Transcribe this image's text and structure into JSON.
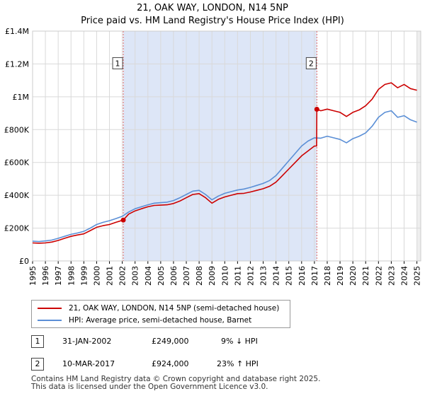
{
  "page_title_line1": "21, OAK WAY, LONDON, N14 5NP",
  "page_title_line2": "Price paid vs. HM Land Registry's House Price Index (HPI)",
  "colors": {
    "hpi": "#5b8fd6",
    "price": "#cc0000",
    "shade": "#dde6f7",
    "grid": "#d9d9d9",
    "marker_line": "#dd6666"
  },
  "chart_data": {
    "type": "line",
    "title": "Price paid vs. HM Land Registry's House Price Index (HPI)",
    "xlabel": "",
    "ylabel": "",
    "xlim": [
      1995,
      2025.3
    ],
    "ylim": [
      0,
      1400000
    ],
    "y_ticks": [
      0,
      200000,
      400000,
      600000,
      800000,
      1000000,
      1200000,
      1400000
    ],
    "y_tick_labels": [
      "£0",
      "£200K",
      "£400K",
      "£600K",
      "£800K",
      "£1M",
      "£1.2M",
      "£1.4M"
    ],
    "x_ticks": [
      1995,
      1996,
      1997,
      1998,
      1999,
      2000,
      2001,
      2002,
      2003,
      2004,
      2005,
      2006,
      2007,
      2008,
      2009,
      2010,
      2011,
      2012,
      2013,
      2014,
      2015,
      2016,
      2017,
      2018,
      2019,
      2020,
      2021,
      2022,
      2023,
      2024,
      2025
    ],
    "x_tick_labels": [
      "1995",
      "1996",
      "1997",
      "1998",
      "1999",
      "2000",
      "2001",
      "2002",
      "2003",
      "2004",
      "2005",
      "2006",
      "2007",
      "2008",
      "2009",
      "2010",
      "2011",
      "2012",
      "2013",
      "2014",
      "2015",
      "2016",
      "2017",
      "2018",
      "2019",
      "2020",
      "2021",
      "2022",
      "2023",
      "2024",
      "2025"
    ],
    "grid": true,
    "shaded_region": [
      2002.08,
      2017.19
    ],
    "series": [
      {
        "name": "21, OAK WAY, LONDON, N14 5NP (semi-detached house)",
        "x": [
          1995.0,
          1995.5,
          1996.0,
          1996.5,
          1997.0,
          1997.5,
          1998.0,
          1998.5,
          1999.0,
          1999.5,
          2000.0,
          2000.5,
          2001.0,
          2001.5,
          2002.08,
          2002.5,
          2003.0,
          2003.5,
          2004.0,
          2004.5,
          2005.0,
          2005.5,
          2006.0,
          2006.5,
          2007.0,
          2007.5,
          2008.0,
          2008.5,
          2009.0,
          2009.5,
          2010.0,
          2010.5,
          2011.0,
          2011.5,
          2012.0,
          2012.5,
          2013.0,
          2013.5,
          2014.0,
          2014.5,
          2015.0,
          2015.5,
          2016.0,
          2016.5,
          2017.0,
          2017.17,
          2017.19,
          2017.5,
          2018.0,
          2018.5,
          2019.0,
          2019.5,
          2020.0,
          2020.5,
          2021.0,
          2021.5,
          2022.0,
          2022.5,
          2023.0,
          2023.5,
          2024.0,
          2024.5,
          2025.0
        ],
        "values": [
          110000,
          108000,
          110000,
          115000,
          125000,
          138000,
          150000,
          158000,
          165000,
          185000,
          205000,
          215000,
          222000,
          235000,
          249000,
          285000,
          305000,
          318000,
          330000,
          338000,
          340000,
          342000,
          350000,
          365000,
          385000,
          405000,
          410000,
          385000,
          352000,
          375000,
          390000,
          400000,
          410000,
          412000,
          420000,
          430000,
          440000,
          455000,
          480000,
          520000,
          560000,
          600000,
          640000,
          670000,
          700000,
          700000,
          924000,
          915000,
          925000,
          915000,
          905000,
          880000,
          905000,
          920000,
          945000,
          985000,
          1045000,
          1075000,
          1085000,
          1055000,
          1075000,
          1050000,
          1040000
        ],
        "color": "#cc0000"
      },
      {
        "name": "HPI: Average price, semi-detached house, Barnet",
        "x": [
          1995.0,
          1995.5,
          1996.0,
          1996.5,
          1997.0,
          1997.5,
          1998.0,
          1998.5,
          1999.0,
          1999.5,
          2000.0,
          2000.5,
          2001.0,
          2001.5,
          2002.0,
          2002.5,
          2003.0,
          2003.5,
          2004.0,
          2004.5,
          2005.0,
          2005.5,
          2006.0,
          2006.5,
          2007.0,
          2007.5,
          2008.0,
          2008.5,
          2009.0,
          2009.5,
          2010.0,
          2010.5,
          2011.0,
          2011.5,
          2012.0,
          2012.5,
          2013.0,
          2013.5,
          2014.0,
          2014.5,
          2015.0,
          2015.5,
          2016.0,
          2016.5,
          2017.0,
          2017.5,
          2018.0,
          2018.5,
          2019.0,
          2019.5,
          2020.0,
          2020.5,
          2021.0,
          2021.5,
          2022.0,
          2022.5,
          2023.0,
          2023.5,
          2024.0,
          2024.5,
          2025.0
        ],
        "values": [
          120000,
          118000,
          122000,
          127000,
          138000,
          150000,
          162000,
          170000,
          180000,
          200000,
          222000,
          235000,
          245000,
          258000,
          272000,
          298000,
          318000,
          330000,
          342000,
          352000,
          355000,
          358000,
          368000,
          385000,
          405000,
          425000,
          430000,
          405000,
          372000,
          395000,
          412000,
          422000,
          432000,
          438000,
          448000,
          460000,
          472000,
          490000,
          520000,
          565000,
          610000,
          655000,
          700000,
          730000,
          750000,
          748000,
          760000,
          750000,
          740000,
          720000,
          745000,
          760000,
          780000,
          820000,
          875000,
          905000,
          915000,
          875000,
          885000,
          860000,
          845000
        ],
        "color": "#5b8fd6"
      }
    ],
    "annotations": [
      {
        "label": "1",
        "x": 2002.08,
        "y": 249000
      },
      {
        "label": "2",
        "x": 2017.19,
        "y": 924000
      }
    ]
  },
  "legend": {
    "price_label": "21, OAK WAY, LONDON, N14 5NP (semi-detached house)",
    "hpi_label": "HPI: Average price, semi-detached house, Barnet"
  },
  "transactions": [
    {
      "num": "1",
      "date": "31-JAN-2002",
      "price": "£249,000",
      "hpi_change": "9% ↓ HPI"
    },
    {
      "num": "2",
      "date": "10-MAR-2017",
      "price": "£924,000",
      "hpi_change": "23% ↑ HPI"
    }
  ],
  "footer": {
    "line1": "Contains HM Land Registry data © Crown copyright and database right 2025.",
    "line2": "This data is licensed under the Open Government Licence v3.0."
  }
}
